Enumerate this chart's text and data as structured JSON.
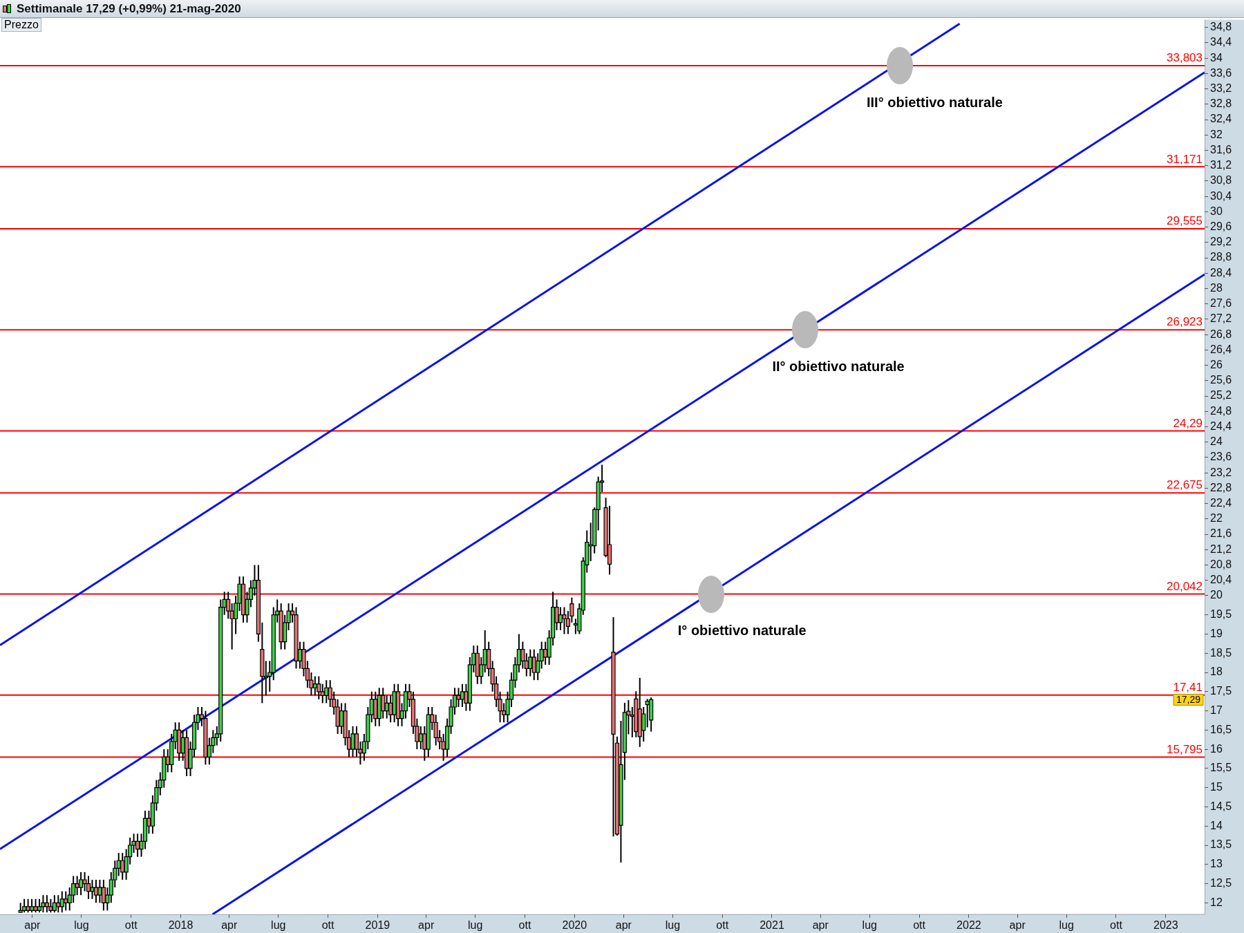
{
  "chart_data": {
    "type": "candlestick",
    "title": "Settimanale   17,29 (+0,99%)   21-mag-2020",
    "ylabel": "Prezzo",
    "x": [
      "2017-03-10",
      "2017-03-17",
      "2017-03-24",
      "2017-03-31",
      "2017-04-07",
      "2017-04-14",
      "2017-04-21",
      "2017-04-28",
      "2017-05-05",
      "2017-05-12",
      "2017-05-19",
      "2017-05-26",
      "2017-06-02",
      "2017-06-09",
      "2017-06-16",
      "2017-06-23",
      "2017-06-30",
      "2017-07-07",
      "2017-07-14",
      "2017-07-21",
      "2017-07-28",
      "2017-08-04",
      "2017-08-11",
      "2017-08-18",
      "2017-08-25",
      "2017-09-01",
      "2017-09-08",
      "2017-09-15",
      "2017-09-22",
      "2017-09-29",
      "2017-10-06",
      "2017-10-13",
      "2017-10-20",
      "2017-10-27",
      "2017-11-03",
      "2017-11-10",
      "2017-11-17",
      "2017-11-24",
      "2017-12-01",
      "2017-12-08",
      "2017-12-15",
      "2017-12-22",
      "2017-12-29",
      "2018-01-05",
      "2018-01-12",
      "2018-01-19",
      "2018-01-26",
      "2018-02-02",
      "2018-02-09",
      "2018-02-16",
      "2018-02-23",
      "2018-03-02",
      "2018-03-09",
      "2018-03-16",
      "2018-03-23",
      "2018-03-30",
      "2018-04-06",
      "2018-04-13",
      "2018-04-20",
      "2018-04-27",
      "2018-05-04",
      "2018-05-11",
      "2018-05-18",
      "2018-05-25",
      "2018-06-01",
      "2018-06-08",
      "2018-06-15",
      "2018-06-22",
      "2018-06-29",
      "2018-07-06",
      "2018-07-13",
      "2018-07-20",
      "2018-07-27",
      "2018-08-03",
      "2018-08-10",
      "2018-08-17",
      "2018-08-24",
      "2018-08-31",
      "2018-09-07",
      "2018-09-14",
      "2018-09-21",
      "2018-09-28",
      "2018-10-05",
      "2018-10-12",
      "2018-10-19",
      "2018-10-26",
      "2018-11-02",
      "2018-11-09",
      "2018-11-16",
      "2018-11-23",
      "2018-11-30",
      "2018-12-07",
      "2018-12-14",
      "2018-12-21",
      "2018-12-28",
      "2019-01-04",
      "2019-01-11",
      "2019-01-18",
      "2019-01-25",
      "2019-02-01",
      "2019-02-08",
      "2019-02-15",
      "2019-02-22",
      "2019-03-01",
      "2019-03-08",
      "2019-03-15",
      "2019-03-22",
      "2019-03-29",
      "2019-04-05",
      "2019-04-12",
      "2019-04-19",
      "2019-04-26",
      "2019-05-03",
      "2019-05-10",
      "2019-05-17",
      "2019-05-24",
      "2019-05-31",
      "2019-06-07",
      "2019-06-14",
      "2019-06-21",
      "2019-06-28",
      "2019-07-05",
      "2019-07-12",
      "2019-07-19",
      "2019-07-26",
      "2019-08-02",
      "2019-08-09",
      "2019-08-16",
      "2019-08-23",
      "2019-08-30",
      "2019-09-06",
      "2019-09-13",
      "2019-09-20",
      "2019-09-27",
      "2019-10-04",
      "2019-10-11",
      "2019-10-18",
      "2019-10-25",
      "2019-11-01",
      "2019-11-08",
      "2019-11-15",
      "2019-11-22",
      "2019-11-29",
      "2019-12-06",
      "2019-12-13",
      "2019-12-20",
      "2019-12-27",
      "2020-01-03",
      "2020-01-10",
      "2020-01-17",
      "2020-01-24",
      "2020-01-31",
      "2020-02-07",
      "2020-02-14",
      "2020-02-21",
      "2020-02-28",
      "2020-03-06",
      "2020-03-13",
      "2020-03-20",
      "2020-03-27",
      "2020-04-03",
      "2020-04-10",
      "2020-04-17",
      "2020-04-24",
      "2020-05-01",
      "2020-05-08",
      "2020-05-15",
      "2020-05-22"
    ],
    "ohlc": [
      [
        11.75,
        12.0,
        11.75,
        11.8
      ],
      [
        11.8,
        12.1,
        11.75,
        11.9
      ],
      [
        11.9,
        12.1,
        11.75,
        11.8
      ],
      [
        11.8,
        12.1,
        11.75,
        11.9
      ],
      [
        11.9,
        12.1,
        11.75,
        11.8
      ],
      [
        11.8,
        12.1,
        11.75,
        11.9
      ],
      [
        11.9,
        12.2,
        11.75,
        12.0
      ],
      [
        12.0,
        12.2,
        11.75,
        11.9
      ],
      [
        11.9,
        12.1,
        11.75,
        11.8
      ],
      [
        11.8,
        12.2,
        11.75,
        12.0
      ],
      [
        12.0,
        12.2,
        11.75,
        11.9
      ],
      [
        11.9,
        12.3,
        11.75,
        12.1
      ],
      [
        12.1,
        12.3,
        11.8,
        12.0
      ],
      [
        12.0,
        12.4,
        11.8,
        12.2
      ],
      [
        12.2,
        12.7,
        12.0,
        12.5
      ],
      [
        12.5,
        12.7,
        12.2,
        12.4
      ],
      [
        12.4,
        12.8,
        12.2,
        12.6
      ],
      [
        12.6,
        12.8,
        12.3,
        12.5
      ],
      [
        12.5,
        12.7,
        12.1,
        12.3
      ],
      [
        12.3,
        12.6,
        12.1,
        12.4
      ],
      [
        12.4,
        12.6,
        12.0,
        12.2
      ],
      [
        12.2,
        12.6,
        12.0,
        12.4
      ],
      [
        12.4,
        12.6,
        11.8,
        12.0
      ],
      [
        12.0,
        12.4,
        11.8,
        12.2
      ],
      [
        12.2,
        12.8,
        12.0,
        12.6
      ],
      [
        12.6,
        13.1,
        12.4,
        12.9
      ],
      [
        12.9,
        13.3,
        12.7,
        13.1
      ],
      [
        13.1,
        13.3,
        12.6,
        12.8
      ],
      [
        12.8,
        13.4,
        12.6,
        13.2
      ],
      [
        13.2,
        13.7,
        13.0,
        13.5
      ],
      [
        13.5,
        13.8,
        13.3,
        13.6
      ],
      [
        13.6,
        13.8,
        13.2,
        13.4
      ],
      [
        13.4,
        13.8,
        13.2,
        13.6
      ],
      [
        13.6,
        14.4,
        13.4,
        14.2
      ],
      [
        14.2,
        14.4,
        13.8,
        14.0
      ],
      [
        14.0,
        14.8,
        13.8,
        14.6
      ],
      [
        14.6,
        15.2,
        14.4,
        15.0
      ],
      [
        15.0,
        15.4,
        14.8,
        15.2
      ],
      [
        15.2,
        16.0,
        15.0,
        15.8
      ],
      [
        15.8,
        16.0,
        15.4,
        15.6
      ],
      [
        15.6,
        16.4,
        15.4,
        16.2
      ],
      [
        16.2,
        16.7,
        16.0,
        16.5
      ],
      [
        16.5,
        16.7,
        15.7,
        15.9
      ],
      [
        15.9,
        16.5,
        15.7,
        16.3
      ],
      [
        16.3,
        16.5,
        15.3,
        15.5
      ],
      [
        15.5,
        16.2,
        15.3,
        16.0
      ],
      [
        16.0,
        16.9,
        15.8,
        16.7
      ],
      [
        16.7,
        17.1,
        16.5,
        16.9
      ],
      [
        16.9,
        17.1,
        16.6,
        16.8
      ],
      [
        16.8,
        17.0,
        15.6,
        15.8
      ],
      [
        15.8,
        16.3,
        15.6,
        16.1
      ],
      [
        16.1,
        16.5,
        15.9,
        16.3
      ],
      [
        16.3,
        16.6,
        16.1,
        16.4
      ],
      [
        16.4,
        19.9,
        16.2,
        19.7
      ],
      [
        19.7,
        20.1,
        19.5,
        19.9
      ],
      [
        19.9,
        20.1,
        19.4,
        19.6
      ],
      [
        19.6,
        19.8,
        18.6,
        19.4
      ],
      [
        19.4,
        20.0,
        19.0,
        19.8
      ],
      [
        19.8,
        20.5,
        19.6,
        20.3
      ],
      [
        20.3,
        20.5,
        19.3,
        19.5
      ],
      [
        19.5,
        20.1,
        19.3,
        19.9
      ],
      [
        19.9,
        20.4,
        19.7,
        20.2
      ],
      [
        20.2,
        20.8,
        20.0,
        20.4
      ],
      [
        20.4,
        20.8,
        18.8,
        19.0
      ],
      [
        18.6,
        19.3,
        17.2,
        17.9
      ],
      [
        17.9,
        18.3,
        17.4,
        17.9
      ],
      [
        17.9,
        18.3,
        17.5,
        18.0
      ],
      [
        18.0,
        19.7,
        17.8,
        19.5
      ],
      [
        19.5,
        19.9,
        19.3,
        19.6
      ],
      [
        19.6,
        19.8,
        18.6,
        18.8
      ],
      [
        18.8,
        19.5,
        18.6,
        19.3
      ],
      [
        19.3,
        19.8,
        19.1,
        19.6
      ],
      [
        19.6,
        19.8,
        19.3,
        19.5
      ],
      [
        19.5,
        19.7,
        18.1,
        18.3
      ],
      [
        18.3,
        18.8,
        18.1,
        18.6
      ],
      [
        18.6,
        18.8,
        17.9,
        18.1
      ],
      [
        18.1,
        18.3,
        17.6,
        17.8
      ],
      [
        17.8,
        18.0,
        17.4,
        17.6
      ],
      [
        17.6,
        17.9,
        17.4,
        17.7
      ],
      [
        17.7,
        17.9,
        17.3,
        17.5
      ],
      [
        17.5,
        17.7,
        17.2,
        17.4
      ],
      [
        17.4,
        17.8,
        17.2,
        17.6
      ],
      [
        17.6,
        17.8,
        17.1,
        17.3
      ],
      [
        17.3,
        17.5,
        16.9,
        17.1
      ],
      [
        17.1,
        17.3,
        16.4,
        16.6
      ],
      [
        16.6,
        17.2,
        16.4,
        17.0
      ],
      [
        17.0,
        17.2,
        16.1,
        16.3
      ],
      [
        16.3,
        16.5,
        15.8,
        16.0
      ],
      [
        16.0,
        16.6,
        15.8,
        16.4
      ],
      [
        16.4,
        16.6,
        15.8,
        16.0
      ],
      [
        16.0,
        16.2,
        15.6,
        15.9
      ],
      [
        15.9,
        16.4,
        15.7,
        16.2
      ],
      [
        16.2,
        17.1,
        16.0,
        16.9
      ],
      [
        16.9,
        17.5,
        16.7,
        17.3
      ],
      [
        17.3,
        17.5,
        16.6,
        16.8
      ],
      [
        16.8,
        17.6,
        16.6,
        17.4
      ],
      [
        17.4,
        17.6,
        16.8,
        17.0
      ],
      [
        17.0,
        17.4,
        16.8,
        17.2
      ],
      [
        17.2,
        17.4,
        16.7,
        16.9
      ],
      [
        16.9,
        17.7,
        16.7,
        17.5
      ],
      [
        17.5,
        17.7,
        16.6,
        16.8
      ],
      [
        16.8,
        17.2,
        16.6,
        17.0
      ],
      [
        17.0,
        17.7,
        16.8,
        17.5
      ],
      [
        17.5,
        17.7,
        17.1,
        17.3
      ],
      [
        17.3,
        17.5,
        16.4,
        16.6
      ],
      [
        16.6,
        16.8,
        16.0,
        16.2
      ],
      [
        16.2,
        16.6,
        16.0,
        16.4
      ],
      [
        16.4,
        16.6,
        15.7,
        16.0
      ],
      [
        16.0,
        17.1,
        15.8,
        16.9
      ],
      [
        16.9,
        17.1,
        16.5,
        16.7
      ],
      [
        16.7,
        16.9,
        16.1,
        16.3
      ],
      [
        16.3,
        16.5,
        16.0,
        16.2
      ],
      [
        16.2,
        16.4,
        15.7,
        16.0
      ],
      [
        16.0,
        16.8,
        15.8,
        16.6
      ],
      [
        16.6,
        17.3,
        16.4,
        17.1
      ],
      [
        17.1,
        17.6,
        16.9,
        17.4
      ],
      [
        17.4,
        17.6,
        17.1,
        17.3
      ],
      [
        17.3,
        17.7,
        17.1,
        17.5
      ],
      [
        17.5,
        17.7,
        17.0,
        17.2
      ],
      [
        17.2,
        18.4,
        17.0,
        18.2
      ],
      [
        18.2,
        18.7,
        18.0,
        18.5
      ],
      [
        18.5,
        18.7,
        17.7,
        17.9
      ],
      [
        17.9,
        18.4,
        17.7,
        18.2
      ],
      [
        18.2,
        19.1,
        18.0,
        18.6
      ],
      [
        18.6,
        18.8,
        17.9,
        18.1
      ],
      [
        18.1,
        18.3,
        17.5,
        17.7
      ],
      [
        17.7,
        17.9,
        17.1,
        17.3
      ],
      [
        17.3,
        17.5,
        16.7,
        17.0
      ],
      [
        17.0,
        17.2,
        16.7,
        16.9
      ],
      [
        16.9,
        17.5,
        16.7,
        17.3
      ],
      [
        17.3,
        18.0,
        17.1,
        17.8
      ],
      [
        17.8,
        18.4,
        17.6,
        18.2
      ],
      [
        18.2,
        19.0,
        18.0,
        18.6
      ],
      [
        18.6,
        18.8,
        18.1,
        18.3
      ],
      [
        18.3,
        18.5,
        17.9,
        18.1
      ],
      [
        18.1,
        18.6,
        17.9,
        18.4
      ],
      [
        18.4,
        18.6,
        17.8,
        18.0
      ],
      [
        18.0,
        18.5,
        17.8,
        18.3
      ],
      [
        18.3,
        18.8,
        18.1,
        18.6
      ],
      [
        18.6,
        18.8,
        18.2,
        18.4
      ],
      [
        18.4,
        19.1,
        18.2,
        18.9
      ],
      [
        18.9,
        20.1,
        18.7,
        19.7
      ],
      [
        19.7,
        19.9,
        19.1,
        19.3
      ],
      [
        19.3,
        19.7,
        19.1,
        19.5
      ],
      [
        19.5,
        19.7,
        19.0,
        19.4
      ],
      [
        19.4,
        19.6,
        19.0,
        19.2
      ],
      [
        19.79,
        19.95,
        19.3,
        19.47
      ],
      [
        19.27,
        19.4,
        19.0,
        19.27
      ],
      [
        19.08,
        19.8,
        19.0,
        19.66
      ],
      [
        19.62,
        21.0,
        19.5,
        20.9
      ],
      [
        20.8,
        21.7,
        20.6,
        21.39
      ],
      [
        21.33,
        21.9,
        20.9,
        21.33
      ],
      [
        21.3,
        22.3,
        21.1,
        22.24
      ],
      [
        22.24,
        23.1,
        21.7,
        22.96
      ],
      [
        22.99,
        23.41,
        22.7,
        22.99
      ],
      [
        22.29,
        22.55,
        21.0,
        21.05
      ],
      [
        21.33,
        22.34,
        20.55,
        20.82
      ],
      [
        18.53,
        19.44,
        13.73,
        16.39
      ],
      [
        16.16,
        16.33,
        13.75,
        13.79
      ],
      [
        14.02,
        16.74,
        13.05,
        15.6
      ],
      [
        15.92,
        17.21,
        15.2,
        16.96
      ],
      [
        16.99,
        17.28,
        16.39,
        16.89
      ],
      [
        16.89,
        17.1,
        16.31,
        16.89
      ],
      [
        17.31,
        17.51,
        16.31,
        16.46
      ],
      [
        17.05,
        17.86,
        16.06,
        16.33
      ],
      [
        16.49,
        17.1,
        16.2,
        16.92
      ],
      [
        17.16,
        17.31,
        16.57,
        17.25
      ],
      [
        16.76,
        17.35,
        16.46,
        17.29
      ]
    ],
    "series": [
      {
        "type": "line",
        "color": "#0a14e6",
        "x": [
          "2017-01-31",
          "2021-12-15"
        ],
        "values": [
          18.71,
          34.9
        ]
      },
      {
        "type": "line",
        "color": "#0a14e6",
        "x": [
          "2017-01-31",
          "2023-03-14"
        ],
        "values": [
          13.4,
          33.63
        ]
      },
      {
        "type": "line",
        "color": "#0a14e6",
        "x": [
          "2018-03-01",
          "2023-03-14"
        ],
        "values": [
          11.7,
          28.37
        ]
      }
    ],
    "ref_lines": [
      {
        "axis": "y",
        "value": 33.803,
        "label": "33,803",
        "color": "#ff0000"
      },
      {
        "axis": "y",
        "value": 31.171,
        "label": "31,171",
        "color": "#ff0000"
      },
      {
        "axis": "y",
        "value": 29.555,
        "label": "29,555",
        "color": "#ff0000"
      },
      {
        "axis": "y",
        "value": 26.923,
        "label": "26,923",
        "color": "#ff0000"
      },
      {
        "axis": "y",
        "value": 24.29,
        "label": "24,29",
        "color": "#ff0000"
      },
      {
        "axis": "y",
        "value": 22.675,
        "label": "22,675",
        "color": "#ff0000"
      },
      {
        "axis": "y",
        "value": 20.042,
        "label": "20,042",
        "color": "#ff0000"
      },
      {
        "axis": "y",
        "value": 17.41,
        "label": "17,41",
        "color": "#ff0000"
      },
      {
        "axis": "y",
        "value": 15.795,
        "label": "15,795",
        "color": "#ff0000"
      }
    ],
    "annotations": [
      {
        "text": "III° obiettivo naturale",
        "x": "2021-08-26",
        "y": 33.803
      },
      {
        "text": "II° obiettivo naturale",
        "x": "2021-03-04",
        "y": 26.923
      },
      {
        "text": "I° obiettivo naturale",
        "x": "2020-09-10",
        "y": 20.042
      },
      "17,29"
    ],
    "xlim": [
      "2017-01-31",
      "2023-03-14"
    ],
    "xticks": [
      {
        "value": "2017-04-01",
        "label": "apr"
      },
      {
        "value": "2017-07-01",
        "label": "lug"
      },
      {
        "value": "2017-10-01",
        "label": "ott"
      },
      {
        "value": "2018-01-01",
        "label": "2018"
      },
      {
        "value": "2018-04-01",
        "label": "apr"
      },
      {
        "value": "2018-07-01",
        "label": "lug"
      },
      {
        "value": "2018-10-01",
        "label": "ott"
      },
      {
        "value": "2019-01-01",
        "label": "2019"
      },
      {
        "value": "2019-04-01",
        "label": "apr"
      },
      {
        "value": "2019-07-01",
        "label": "lug"
      },
      {
        "value": "2019-10-01",
        "label": "ott"
      },
      {
        "value": "2020-01-01",
        "label": "2020"
      },
      {
        "value": "2020-04-01",
        "label": "apr"
      },
      {
        "value": "2020-07-01",
        "label": "lug"
      },
      {
        "value": "2020-10-01",
        "label": "ott"
      },
      {
        "value": "2021-01-01",
        "label": "2021"
      },
      {
        "value": "2021-04-01",
        "label": "apr"
      },
      {
        "value": "2021-07-01",
        "label": "lug"
      },
      {
        "value": "2021-10-01",
        "label": "ott"
      },
      {
        "value": "2022-01-01",
        "label": "2022"
      },
      {
        "value": "2022-04-01",
        "label": "apr"
      },
      {
        "value": "2022-07-01",
        "label": "lug"
      },
      {
        "value": "2022-10-01",
        "label": "ott"
      },
      {
        "value": "2023-01-01",
        "label": "2023"
      }
    ],
    "ylim": [
      11.7,
      35
    ],
    "yticks": [
      12,
      {
        "value": 12.5,
        "label": "12,5"
      },
      13,
      {
        "value": 13.5,
        "label": "13,5"
      },
      14,
      {
        "value": 14.5,
        "label": "14,5"
      },
      15,
      {
        "value": 15.5,
        "label": "15,5"
      },
      16,
      {
        "value": 16.5,
        "label": "16,5"
      },
      17,
      {
        "value": 17.5,
        "label": "17,5"
      },
      18,
      {
        "value": 18.5,
        "label": "18,5"
      },
      19,
      {
        "value": 19.5,
        "label": "19,5"
      },
      20,
      {
        "value": 20.4,
        "label": "20,4"
      },
      {
        "value": 20.8,
        "label": "20,8"
      },
      {
        "value": 21.2,
        "label": "21,2"
      },
      {
        "value": 21.6,
        "label": "21,6"
      },
      22,
      {
        "value": 22.4,
        "label": "22,4"
      },
      {
        "value": 22.8,
        "label": "22,8"
      },
      {
        "value": 23.2,
        "label": "23,2"
      },
      {
        "value": 23.6,
        "label": "23,6"
      },
      24,
      {
        "value": 24.4,
        "label": "24,4"
      },
      {
        "value": 24.8,
        "label": "24,8"
      },
      {
        "value": 25.2,
        "label": "25,2"
      },
      {
        "value": 25.6,
        "label": "25,6"
      },
      26,
      {
        "value": 26.4,
        "label": "26,4"
      },
      {
        "value": 26.8,
        "label": "26,8"
      },
      {
        "value": 27.2,
        "label": "27,2"
      },
      {
        "value": 27.6,
        "label": "27,6"
      },
      28,
      {
        "value": 28.4,
        "label": "28,4"
      },
      {
        "value": 28.8,
        "label": "28,8"
      },
      {
        "value": 29.2,
        "label": "29,2"
      },
      {
        "value": 29.6,
        "label": "29,6"
      },
      30,
      {
        "value": 30.4,
        "label": "30,4"
      },
      {
        "value": 30.8,
        "label": "30,8"
      },
      {
        "value": 31.2,
        "label": "31,2"
      },
      {
        "value": 31.6,
        "label": "31,6"
      },
      32,
      {
        "value": 32.4,
        "label": "32,4"
      },
      {
        "value": 32.8,
        "label": "32,8"
      },
      {
        "value": 33.2,
        "label": "33,2"
      },
      {
        "value": 33.6,
        "label": "33,6"
      },
      34,
      {
        "value": 34.4,
        "label": "34,4"
      },
      {
        "value": 34.8,
        "label": "34,8"
      }
    ],
    "grid": false,
    "legend": false
  }
}
